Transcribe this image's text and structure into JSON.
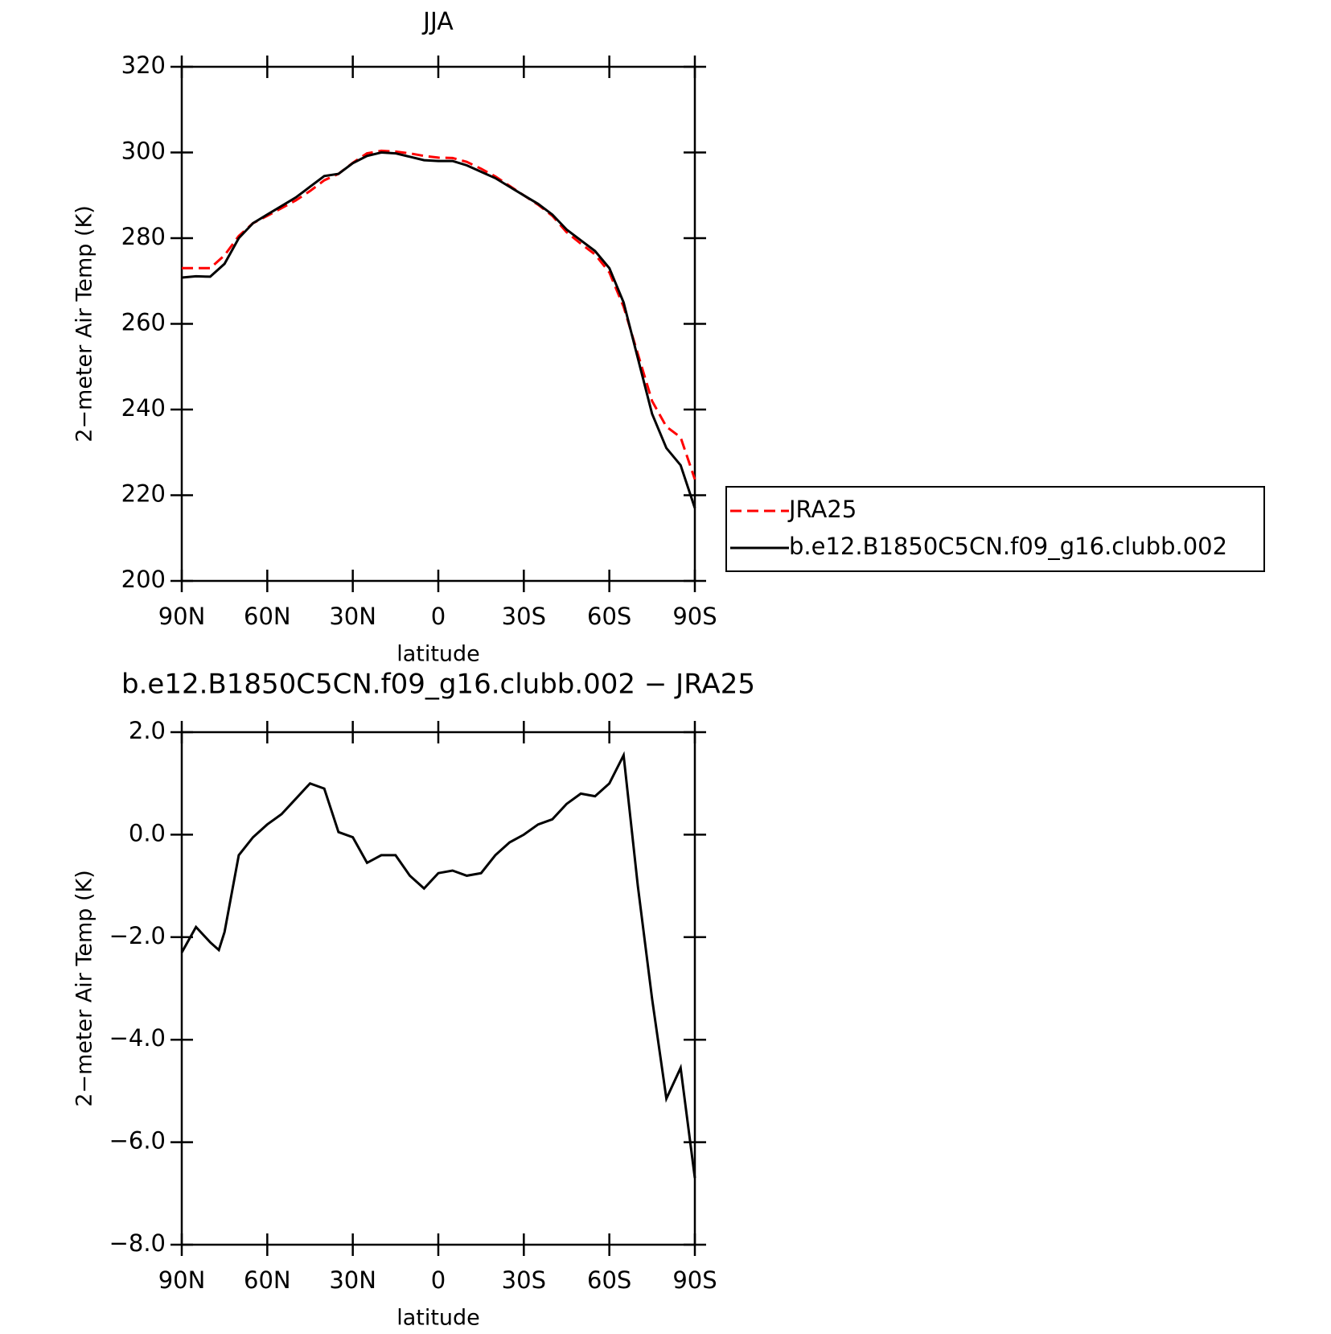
{
  "chart_data": [
    {
      "type": "line",
      "title": "JJA",
      "x_label": "latitude",
      "y_label": "2−meter Air Temp (K)",
      "x": [
        90,
        85,
        80,
        75,
        70,
        65,
        60,
        55,
        50,
        45,
        40,
        35,
        30,
        25,
        20,
        15,
        10,
        5,
        0,
        -5,
        -10,
        -15,
        -20,
        -25,
        -30,
        -35,
        -40,
        -45,
        -50,
        -55,
        -60,
        -65,
        -70,
        -75,
        -80,
        -85,
        -90
      ],
      "series": [
        {
          "name": "JRA25",
          "color": "#ff0000",
          "dashed": true,
          "values": [
            273,
            273,
            273,
            276,
            280.5,
            283.5,
            285.2,
            287,
            288.8,
            291,
            293.5,
            295,
            297.6,
            299.8,
            300.4,
            300.2,
            299.8,
            299.2,
            298.8,
            298.7,
            297.8,
            296.2,
            294.4,
            292.2,
            290,
            287.8,
            285.2,
            281.4,
            278.7,
            276.2,
            272,
            264,
            253,
            242,
            236,
            233.5,
            223.7
          ]
        },
        {
          "name": "b.e12.B1850C5CN.f09_g16.clubb.002",
          "color": "#000000",
          "dashed": false,
          "values": [
            270.8,
            271.1,
            271,
            274,
            280,
            283.5,
            285.5,
            287.5,
            289.5,
            292,
            294.5,
            295,
            297.5,
            299.2,
            300,
            299.8,
            299,
            298.2,
            298,
            298,
            297,
            295.5,
            294,
            292,
            290,
            288,
            285.5,
            282,
            279.5,
            277,
            273,
            265,
            252,
            239,
            231,
            227,
            217
          ]
        }
      ],
      "xlim": [
        90,
        -90
      ],
      "xticks": [
        {
          "value": 90,
          "label": "90N"
        },
        {
          "value": 60,
          "label": "60N"
        },
        {
          "value": 30,
          "label": "30N"
        },
        0,
        {
          "value": -30,
          "label": "30S"
        },
        {
          "value": -60,
          "label": "60S"
        },
        {
          "value": -90,
          "label": "90S"
        }
      ],
      "ylim": [
        200,
        320
      ],
      "yticks": [
        200,
        220,
        240,
        260,
        280,
        300,
        320
      ],
      "legend": "right"
    },
    {
      "type": "line",
      "title": "b.e12.B1850C5CN.f09_g16.clubb.002 − JRA25",
      "x_label": "latitude",
      "y_label": "2−meter Air Temp (K)",
      "x": [
        90,
        85,
        80,
        77,
        75,
        70,
        65,
        60,
        55,
        50,
        45,
        40,
        35,
        30,
        25,
        20,
        15,
        10,
        5,
        0,
        -5,
        -10,
        -15,
        -20,
        -25,
        -30,
        -35,
        -40,
        -45,
        -50,
        -55,
        -60,
        -65,
        -70,
        -75,
        -80,
        -85,
        -90
      ],
      "series": [
        {
          "color": "#000000",
          "dashed": false,
          "values": [
            -2.3,
            -1.8,
            -2.1,
            -2.25,
            -1.9,
            -0.4,
            -0.05,
            0.2,
            0.4,
            0.7,
            1.0,
            0.9,
            0.05,
            -0.05,
            -0.55,
            -0.4,
            -0.4,
            -0.8,
            -1.05,
            -0.75,
            -0.7,
            -0.8,
            -0.75,
            -0.4,
            -0.15,
            0.0,
            0.2,
            0.3,
            0.6,
            0.8,
            0.75,
            1.0,
            1.55,
            -1.0,
            -3.2,
            -5.15,
            -4.55,
            -6.7
          ]
        }
      ],
      "xlim": [
        90,
        -90
      ],
      "xticks": [
        {
          "value": 90,
          "label": "90N"
        },
        {
          "value": 60,
          "label": "60N"
        },
        {
          "value": 30,
          "label": "30N"
        },
        0,
        {
          "value": -30,
          "label": "30S"
        },
        {
          "value": -60,
          "label": "60S"
        },
        {
          "value": -90,
          "label": "90S"
        }
      ],
      "ylim": [
        -8,
        2
      ],
      "yticks": [
        {
          "value": -8,
          "label": "−8.0"
        },
        {
          "value": -6,
          "label": "−6.0"
        },
        {
          "value": -4,
          "label": "−4.0"
        },
        {
          "value": -2,
          "label": "−2.0"
        },
        {
          "value": 0,
          "label": "0.0"
        },
        {
          "value": 2,
          "label": "2.0"
        }
      ]
    }
  ]
}
